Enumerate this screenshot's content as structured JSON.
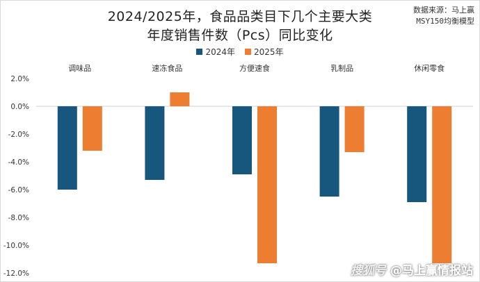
{
  "title_line1": "2024/2025年，食品品类目下几个主要大类",
  "title_line2": "年度销售件数（Pcs）同比变化",
  "source_line1": "数据来源：马上赢",
  "source_line2": "MSY150均衡模型",
  "watermark_brand": "搜狐号",
  "watermark_text": "@马上赢情报站",
  "colors": {
    "series2024": "#17577e",
    "series2025": "#ed7d31"
  },
  "chart_data": {
    "type": "bar",
    "categories": [
      "调味品",
      "速冻食品",
      "方便速食",
      "乳制品",
      "休闲零食"
    ],
    "series": [
      {
        "name": "2024年",
        "values": [
          -6.0,
          -5.3,
          -4.9,
          -6.5,
          -6.9
        ]
      },
      {
        "name": "2025年",
        "values": [
          -3.2,
          1.0,
          -11.3,
          -3.3,
          -11.3
        ]
      }
    ],
    "ylim": [
      -12.0,
      2.0
    ],
    "yticks": [
      2.0,
      0.0,
      -2.0,
      -4.0,
      -6.0,
      -8.0,
      -10.0,
      -12.0
    ],
    "ytick_labels": [
      "2.0%",
      "0.0%",
      "-2.0%",
      "-4.0%",
      "-6.0%",
      "-8.0%",
      "-10.0%",
      "-12.0%"
    ],
    "category_labels_position": "top",
    "legend_position": "top-center",
    "grid": false
  }
}
